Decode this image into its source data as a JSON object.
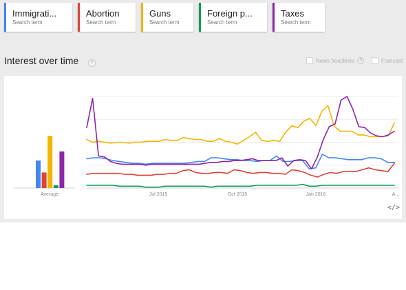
{
  "search_terms": [
    {
      "name": "Immigrati...",
      "subtitle": "Search term",
      "color": "#4285f4"
    },
    {
      "name": "Abortion",
      "subtitle": "Search term",
      "color": "#db4437"
    },
    {
      "name": "Guns",
      "subtitle": "Search term",
      "color": "#f4b400"
    },
    {
      "name": "Foreign p...",
      "subtitle": "Search term",
      "color": "#0f9d58"
    },
    {
      "name": "Taxes",
      "subtitle": "Search term",
      "color": "#8e24aa"
    }
  ],
  "section": {
    "title": "Interest over time",
    "help_glyph": "?"
  },
  "options": {
    "news_headlines": "News headlines",
    "news_help": "?",
    "forecast": "Forecast"
  },
  "embed_icon": "</>",
  "chart_data": {
    "type": "line",
    "title": "Interest over time",
    "ylim": [
      0,
      100
    ],
    "grid": true,
    "x_ticks": [
      "Jul 2015",
      "Oct 2015",
      "Jan 2016",
      "A..."
    ],
    "average": {
      "label": "Average",
      "values": [
        {
          "name": "Immigrati...",
          "value": 30,
          "color": "#4285f4"
        },
        {
          "name": "Abortion",
          "value": 17,
          "color": "#db4437"
        },
        {
          "name": "Guns",
          "value": 57,
          "color": "#f4b400"
        },
        {
          "name": "Foreign p...",
          "value": 3,
          "color": "#0f9d58"
        },
        {
          "name": "Taxes",
          "value": 40,
          "color": "#8e24aa"
        }
      ]
    },
    "series": [
      {
        "name": "Immigrati...",
        "color": "#4285f4",
        "values": [
          32,
          33,
          33,
          32,
          30,
          29,
          28,
          27,
          27,
          26,
          27,
          27,
          27,
          27,
          27,
          27,
          28,
          29,
          29,
          33,
          33,
          32,
          31,
          31,
          30,
          30,
          29,
          30,
          30,
          35,
          29,
          29,
          30,
          30,
          21,
          22,
          37,
          33,
          33,
          32,
          31,
          31,
          31,
          33,
          33,
          32,
          28,
          28
        ]
      },
      {
        "name": "Abortion",
        "color": "#db4437",
        "values": [
          15,
          16,
          16,
          16,
          16,
          16,
          15,
          15,
          14,
          14,
          14,
          15,
          15,
          16,
          16,
          19,
          20,
          17,
          16,
          16,
          17,
          17,
          16,
          20,
          19,
          17,
          16,
          17,
          17,
          16,
          16,
          15,
          20,
          19,
          17,
          14,
          12,
          15,
          17,
          16,
          18,
          18,
          18,
          20,
          22,
          20,
          19,
          18,
          27
        ]
      },
      {
        "name": "Foreign p...",
        "color": "#0f9d58",
        "values": [
          3,
          3,
          3,
          3,
          3,
          2,
          2,
          2,
          2,
          1,
          1,
          1,
          2,
          2,
          2,
          2,
          2,
          2,
          2,
          1,
          2,
          2,
          2,
          2,
          2,
          2,
          3,
          3,
          3,
          3,
          3,
          3,
          3,
          4,
          2,
          2,
          3,
          3,
          3,
          3,
          3,
          3,
          3,
          3,
          3,
          3,
          3,
          3
        ]
      },
      {
        "name": "Guns",
        "color": "#f4b400",
        "values": [
          53,
          50,
          51,
          50,
          49,
          50,
          50,
          49,
          50,
          50,
          51,
          51,
          51,
          53,
          52,
          52,
          55,
          54,
          53,
          53,
          51,
          51,
          54,
          51,
          50,
          48,
          52,
          56,
          61,
          52,
          51,
          52,
          51,
          61,
          68,
          66,
          73,
          76,
          68,
          84,
          90,
          68,
          62,
          62,
          62,
          58,
          58,
          56,
          56,
          56,
          57,
          71
        ]
      },
      {
        "name": "Taxes",
        "color": "#8e24aa",
        "values": [
          66,
          98,
          35,
          34,
          29,
          27,
          26,
          26,
          26,
          26,
          25,
          26,
          26,
          26,
          26,
          26,
          26,
          26,
          26,
          26,
          27,
          28,
          28,
          29,
          29,
          30,
          30,
          31,
          32,
          30,
          30,
          30,
          30,
          33,
          24,
          30,
          31,
          30,
          21,
          34,
          53,
          67,
          70,
          96,
          100,
          86,
          67,
          66,
          60,
          57,
          56,
          58,
          62
        ]
      }
    ]
  }
}
